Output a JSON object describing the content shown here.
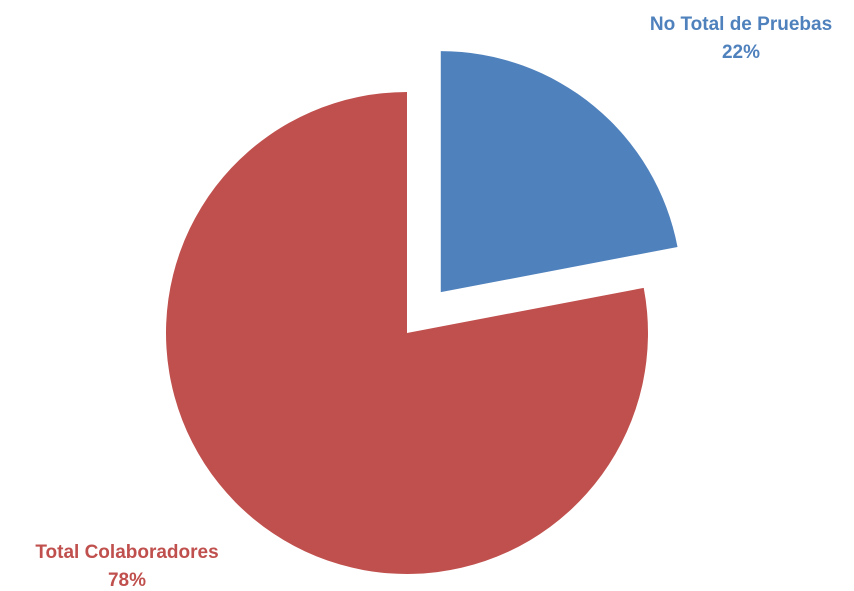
{
  "chart_data": {
    "type": "pie",
    "title": "",
    "exploded_slice": "No Total de Pruebas",
    "series": [
      {
        "name": "No Total de Pruebas",
        "value": 22,
        "label": "22%",
        "color": "#4F81BD"
      },
      {
        "name": "Total Colaboradores",
        "value": 78,
        "label": "78%",
        "color": "#C0504D"
      }
    ]
  }
}
